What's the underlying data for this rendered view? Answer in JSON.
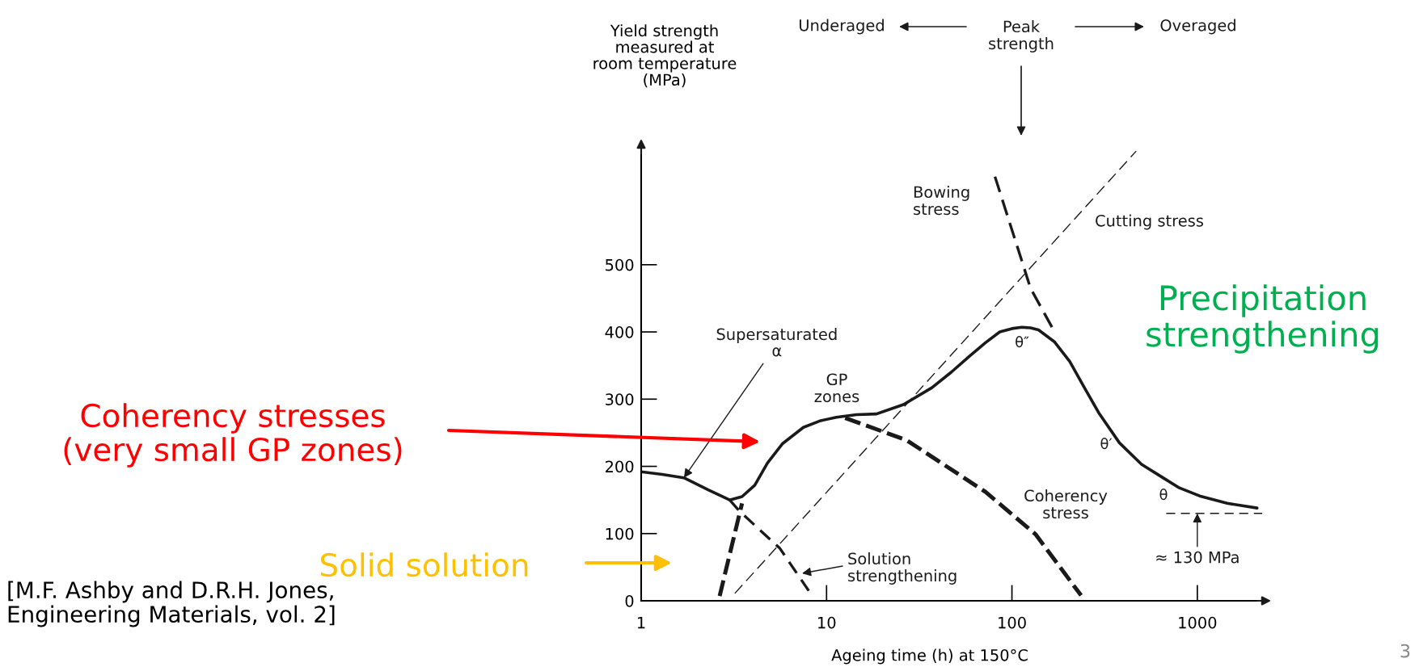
{
  "chart_data": {
    "type": "line",
    "ylabel": "Yield strength\nmeasured at\nroom temperature\n(MPa)",
    "xlabel": "Ageing time (h) at 150°C",
    "log": "x",
    "xlim": [
      1,
      2400
    ],
    "xticks": [
      1,
      10,
      100,
      1000
    ],
    "ylim": [
      0,
      680
    ],
    "yticks": [
      0,
      100,
      200,
      300,
      400,
      500
    ],
    "grid": false,
    "legend": false,
    "series": [
      {
        "color": "#1a1a1a",
        "line_style": "solid",
        "x": [
          1,
          1.3,
          1.7,
          2.3,
          2.7,
          3.0,
          3.5,
          4.1,
          4.8,
          5.8,
          7.5,
          9.3,
          11.3,
          14.5,
          18.6,
          26,
          37,
          47,
          59,
          72,
          86,
          100,
          113,
          126,
          139,
          170,
          205,
          245,
          295,
          380,
          500,
          645,
          800,
          1030,
          1450,
          2100
        ],
        "values": [
          192,
          188,
          183,
          165,
          156,
          150,
          155,
          172,
          205,
          234,
          258,
          268,
          273,
          277,
          278,
          292,
          317,
          340,
          364,
          384,
          400,
          405,
          407,
          406,
          403,
          385,
          356,
          318,
          279,
          235,
          203,
          184,
          168,
          156,
          145,
          138
        ]
      },
      {
        "color": "#1a1a1a",
        "line_style": "dashed",
        "x": [
          3.0,
          3.4,
          5.6,
          8.1
        ],
        "values": [
          150,
          133,
          78,
          13
        ]
      },
      {
        "color": "#1a1a1a",
        "line_style": "dashed",
        "x": [
          2.65,
          3.5,
          5,
          12.6,
          27,
          72,
          134,
          236
        ],
        "values": [
          7,
          145,
          null,
          272,
          239,
          162,
          99,
          8
        ]
      },
      {
        "color": "#1a1a1a",
        "line_style": "dashed",
        "x": [
          3.2,
          468
        ],
        "values": [
          11,
          669
        ]
      },
      {
        "color": "#1a1a1a",
        "line_style": "dashed",
        "x": [
          81,
          126,
          166
        ],
        "values": [
          631,
          465,
          405
        ]
      },
      {
        "color": "#1a1a1a",
        "line_style": "dashed",
        "x": [
          680,
          2240
        ],
        "values": [
          130,
          130
        ]
      }
    ],
    "annotations": [
      {
        "text": "Supersaturated\nα",
        "x": 1.7,
        "y": 183
      },
      {
        "text": "≈ 130 MPa",
        "x": 1000,
        "y": 130
      },
      "Solution\nstrengthening",
      "GP\nzones",
      "Bowing\nstress",
      "Cutting stress",
      "θ″",
      "θ′",
      "θ",
      "Coherency\nstress",
      "Coherency stresses\n(very small GP zones)",
      "Solid solution",
      "Precipitation\nstrengthening",
      "Underaged",
      "Peak\nstrength",
      "Overaged",
      "[M.F. Ashby and D.R.H. Jones,\nEngineering Materials, vol. 2]",
      "3"
    ]
  }
}
